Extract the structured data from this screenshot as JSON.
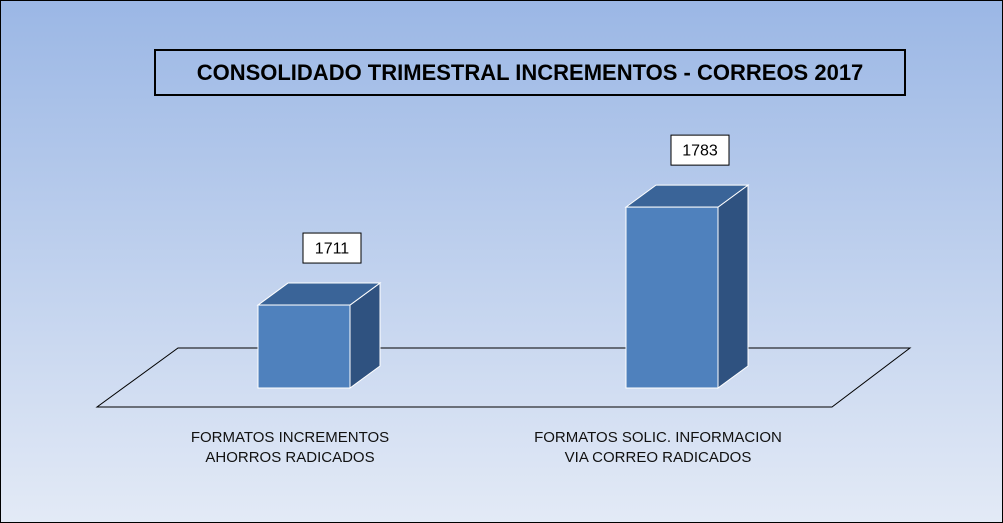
{
  "chart_data": {
    "type": "bar3d",
    "title": "CONSOLIDADO TRIMESTRAL INCREMENTOS - CORREOS 2017",
    "categories": [
      "FORMATOS INCREMENTOS AHORROS RADICADOS",
      "FORMATOS SOLIC. INFORMACION VIA CORREO RADICADOS"
    ],
    "values": [
      1711,
      1783
    ],
    "color": "#4f81bd",
    "ylim": [
      1650,
      1800
    ]
  }
}
